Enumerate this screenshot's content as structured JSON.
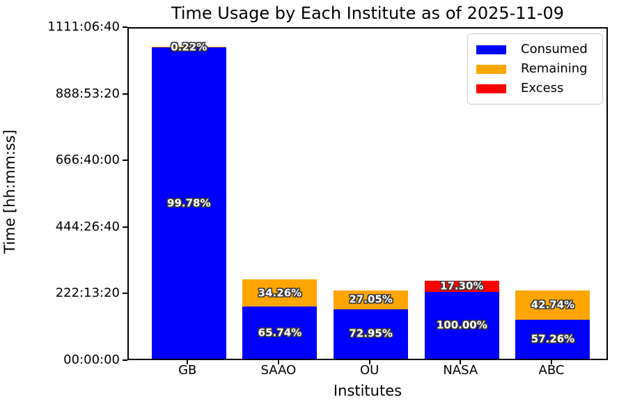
{
  "title": "Time Usage by Each Institute as of 2025-11-09",
  "axes": {
    "ylabel": "Time [hh:mm:ss]",
    "xlabel": "Institutes",
    "ylim_seconds": [
      0,
      4000000
    ],
    "yticks": [
      {
        "value_seconds": 0,
        "label": "00:00:00"
      },
      {
        "value_seconds": 800000,
        "label": "222:13:20"
      },
      {
        "value_seconds": 1600000,
        "label": "444:26:40"
      },
      {
        "value_seconds": 2400000,
        "label": "666:40:00"
      },
      {
        "value_seconds": 3200000,
        "label": "888:53:20"
      },
      {
        "value_seconds": 4000000,
        "label": "1111:06:40"
      }
    ],
    "grid": false
  },
  "legend": {
    "position": "upper right",
    "items": [
      {
        "label": "Consumed",
        "color": "#0000ff"
      },
      {
        "label": "Remaining",
        "color": "#ffa500"
      },
      {
        "label": "Excess",
        "color": "#ff0000"
      }
    ]
  },
  "chart_data": {
    "type": "bar",
    "stacked": true,
    "title": "Time Usage by Each Institute as of 2025-11-09",
    "xlabel": "Institutes",
    "ylabel": "Time [hh:mm:ss]",
    "ylim": [
      0,
      4000000
    ],
    "categories": [
      "GB",
      "SAAO",
      "OU",
      "NASA",
      "ABC"
    ],
    "series": [
      {
        "name": "Consumed",
        "color": "#0000ff",
        "values_seconds": [
          3740000,
          627164,
          598190,
          800000,
          469532
        ],
        "labels": [
          "99.78%",
          "65.74%",
          "72.95%",
          "100.00%",
          "57.26%"
        ]
      },
      {
        "name": "Remaining",
        "color": "#ffa500",
        "values_seconds": [
          8246,
          326836,
          221810,
          0,
          350468
        ],
        "labels": [
          "0.22%",
          "34.26%",
          "27.05%",
          "",
          "42.74%"
        ]
      },
      {
        "name": "Excess",
        "color": "#ff0000",
        "values_seconds": [
          0,
          0,
          0,
          138400,
          0
        ],
        "labels": [
          "",
          "",
          "",
          "17.30%",
          ""
        ]
      }
    ],
    "label_note": "percent labels are share of each institute's allocation, drawn centered in each stacked segment"
  }
}
